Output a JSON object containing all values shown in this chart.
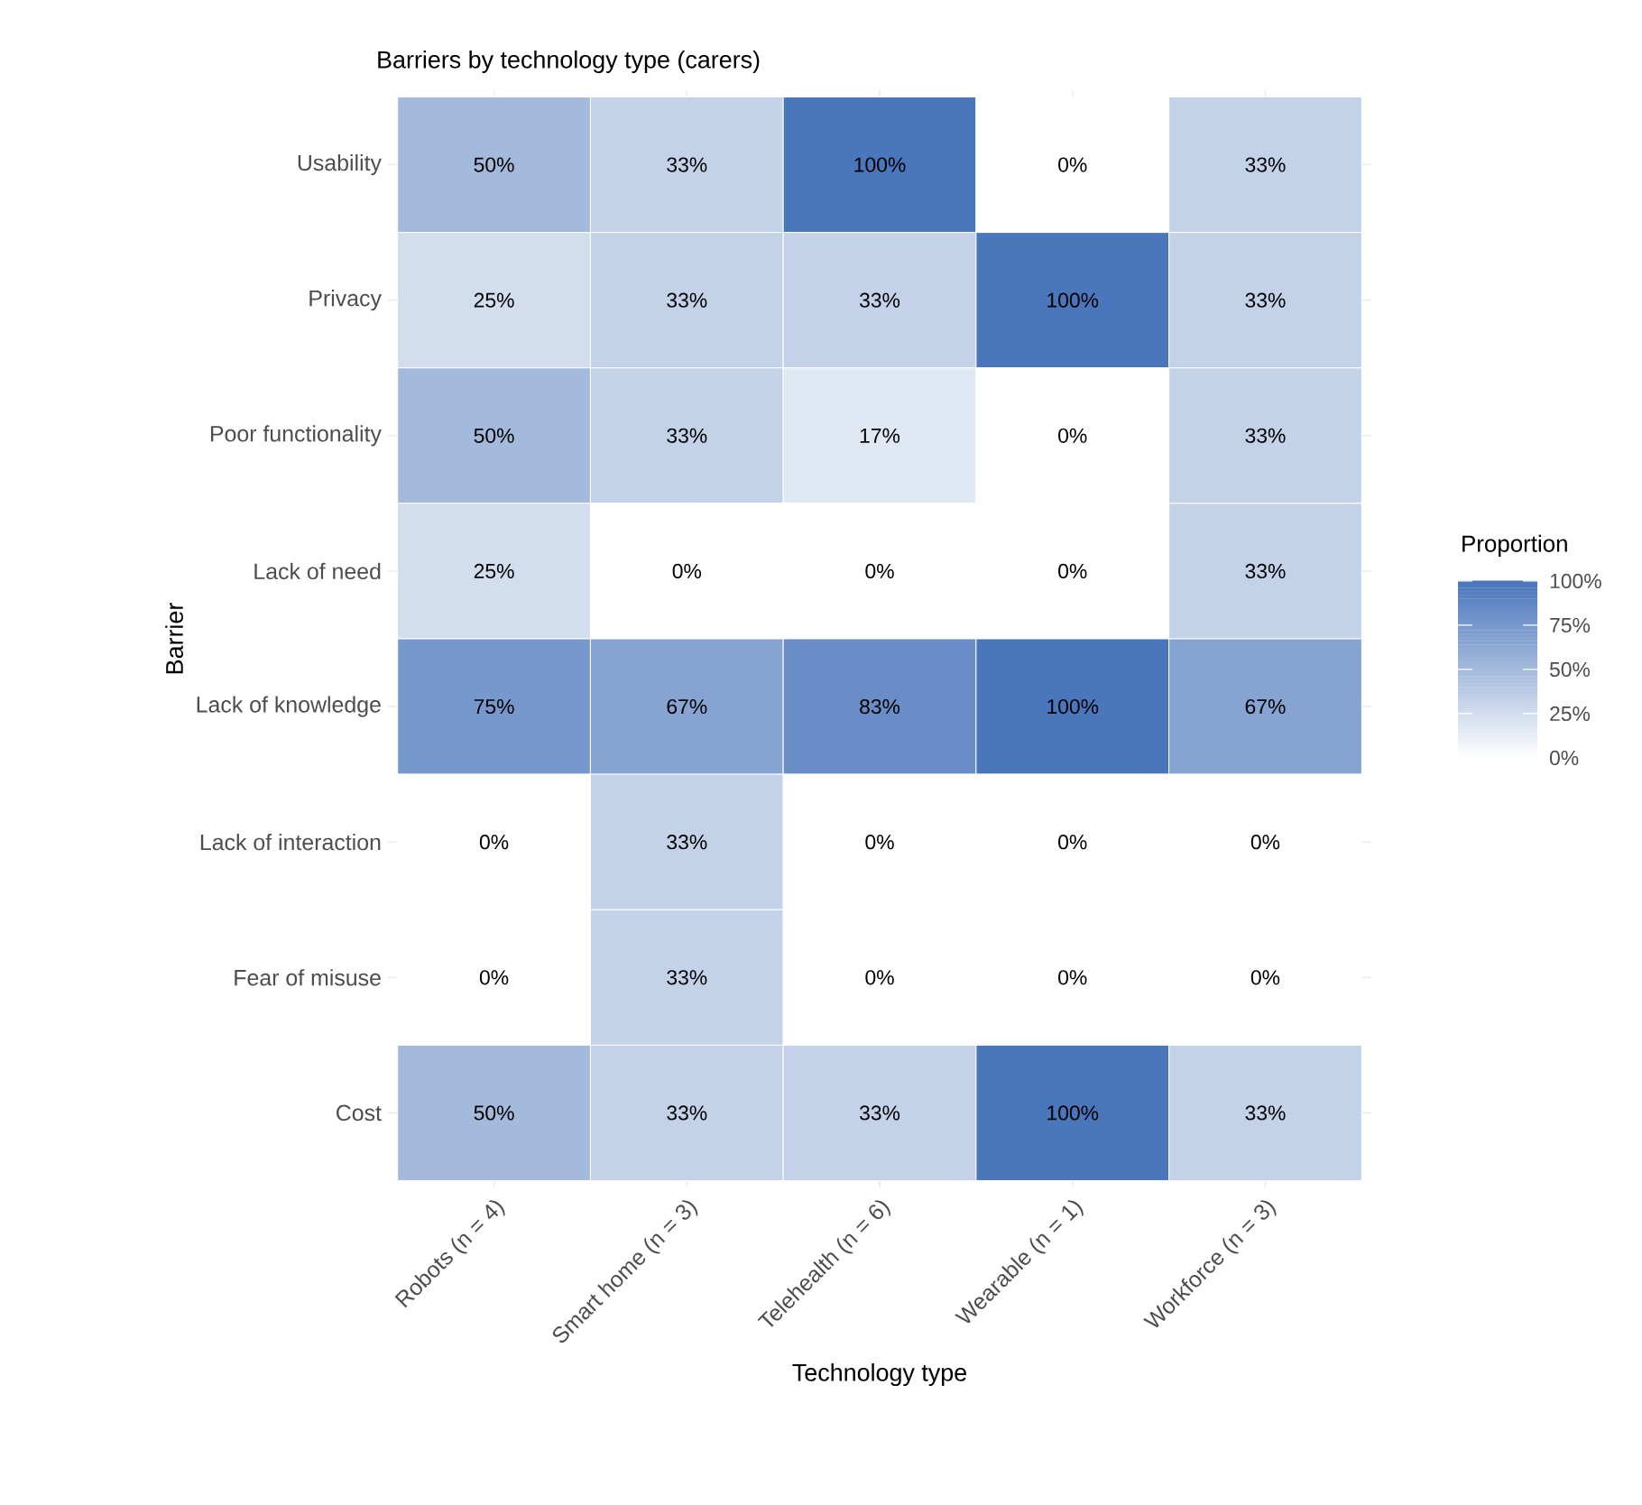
{
  "chart_data": {
    "type": "heatmap",
    "title": "Barriers by technology type (carers)",
    "xlabel": "Technology type",
    "ylabel": "Barrier",
    "clabel": "Proportion",
    "categories": [
      "Robots (n = 4)",
      "Smart home (n = 3)",
      "Telehealth (n = 6)",
      "Wearable (n = 1)",
      "Workforce (n = 3)"
    ],
    "y_categories": [
      "Usability",
      "Privacy",
      "Poor functionality",
      "Lack of need",
      "Lack of knowledge",
      "Lack of interaction",
      "Fear of misuse",
      "Cost"
    ],
    "cells": [
      [
        50,
        33,
        100,
        0,
        33
      ],
      [
        25,
        33,
        33,
        100,
        33
      ],
      [
        50,
        33,
        17,
        0,
        33
      ],
      [
        25,
        0,
        0,
        0,
        33
      ],
      [
        75,
        67,
        83,
        100,
        67
      ],
      [
        0,
        33,
        0,
        0,
        0
      ],
      [
        0,
        33,
        0,
        0,
        0
      ],
      [
        50,
        33,
        33,
        100,
        33
      ]
    ],
    "cell_labels": [
      [
        "50%",
        "33%",
        "100%",
        "0%",
        "33%"
      ],
      [
        "25%",
        "33%",
        "33%",
        "100%",
        "33%"
      ],
      [
        "50%",
        "33%",
        "17%",
        "0%",
        "33%"
      ],
      [
        "25%",
        "0%",
        "0%",
        "0%",
        "33%"
      ],
      [
        "75%",
        "67%",
        "83%",
        "100%",
        "67%"
      ],
      [
        "0%",
        "33%",
        "0%",
        "0%",
        "0%"
      ],
      [
        "0%",
        "33%",
        "0%",
        "0%",
        "0%"
      ],
      [
        "50%",
        "33%",
        "33%",
        "100%",
        "33%"
      ]
    ],
    "color": "#4a76bb",
    "clim": [
      0,
      100
    ],
    "cticks": [
      {
        "value": 0,
        "label": "0%"
      },
      {
        "value": 25,
        "label": "25%"
      },
      {
        "value": 50,
        "label": "50%"
      },
      {
        "value": 75,
        "label": "75%"
      },
      {
        "value": 100,
        "label": "100%"
      }
    ],
    "grid": true
  }
}
